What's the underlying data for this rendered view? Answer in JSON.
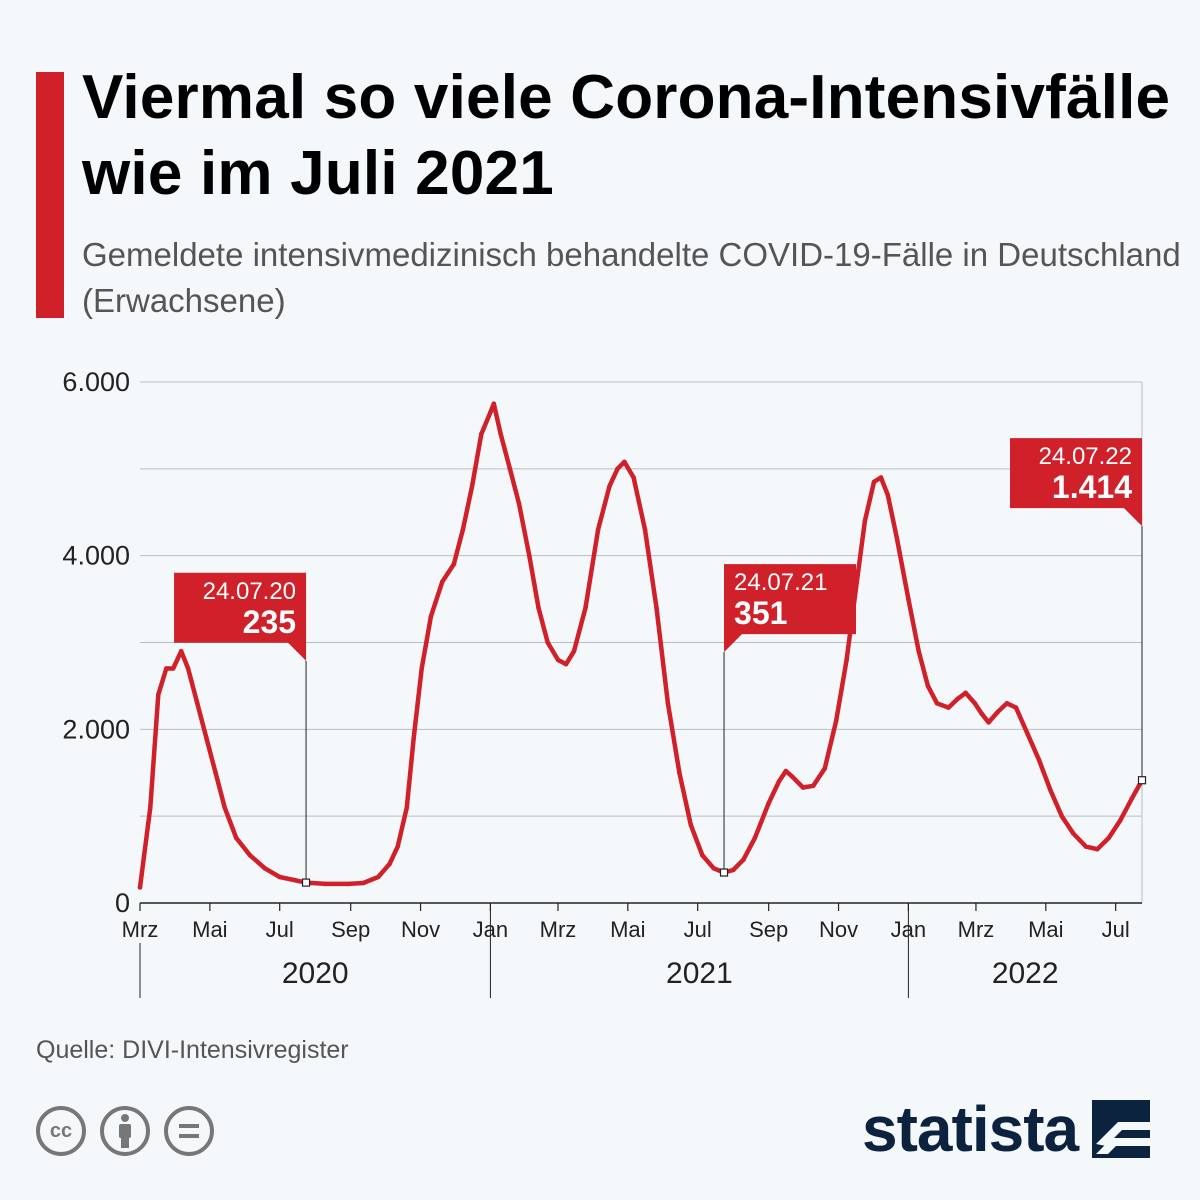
{
  "header": {
    "title": "Viermal so viele Corona-Intensivfälle wie im Juli 2021",
    "subtitle": "Gemeldete intensivmedizinisch behandelte COVID-19-Fälle in Deutschland (Erwachsene)"
  },
  "footer": {
    "source": "Quelle: DIVI-Intensivregister",
    "license_icons": [
      "cc-icon",
      "attribution-person-icon",
      "no-derivatives-equals-icon"
    ],
    "cc_label": "cc",
    "brand": "statista"
  },
  "colors": {
    "accent": "#d0202a",
    "text": "#000000",
    "muted": "#555555",
    "brand": "#0c2340",
    "background": "#f5f8fb"
  },
  "chart_data": {
    "type": "line",
    "title": "",
    "xlabel": "",
    "ylabel": "",
    "ylim": [
      0,
      6000
    ],
    "y_ticks": [
      {
        "value": 0,
        "label": "0"
      },
      {
        "value": 2000,
        "label": "2.000"
      },
      {
        "value": 4000,
        "label": "4.000"
      },
      {
        "value": 6000,
        "label": "6.000"
      }
    ],
    "x_range": [
      "2020-03-01",
      "2022-07-24"
    ],
    "x_ticks": [
      {
        "date": "2020-03-01",
        "label": "Mrz"
      },
      {
        "date": "2020-05-01",
        "label": "Mai"
      },
      {
        "date": "2020-07-01",
        "label": "Jul"
      },
      {
        "date": "2020-09-01",
        "label": "Sep"
      },
      {
        "date": "2020-11-01",
        "label": "Nov"
      },
      {
        "date": "2021-01-01",
        "label": "Jan"
      },
      {
        "date": "2021-03-01",
        "label": "Mrz"
      },
      {
        "date": "2021-05-01",
        "label": "Mai"
      },
      {
        "date": "2021-07-01",
        "label": "Jul"
      },
      {
        "date": "2021-09-01",
        "label": "Sep"
      },
      {
        "date": "2021-11-01",
        "label": "Nov"
      },
      {
        "date": "2022-01-01",
        "label": "Jan"
      },
      {
        "date": "2022-03-01",
        "label": "Mrz"
      },
      {
        "date": "2022-05-01",
        "label": "Mai"
      },
      {
        "date": "2022-07-01",
        "label": "Jul"
      }
    ],
    "years": [
      {
        "label": "2020",
        "start": "2020-03-01",
        "end": "2021-01-01"
      },
      {
        "label": "2021",
        "start": "2021-01-01",
        "end": "2022-01-01"
      },
      {
        "label": "2022",
        "start": "2022-01-01",
        "end": "2022-07-24"
      }
    ],
    "grid": true,
    "series": [
      {
        "name": "",
        "color": "#d0202a",
        "points": [
          [
            "2020-03-01",
            180
          ],
          [
            "2020-03-10",
            1100
          ],
          [
            "2020-03-17",
            2400
          ],
          [
            "2020-03-24",
            2700
          ],
          [
            "2020-03-30",
            2700
          ],
          [
            "2020-04-06",
            2900
          ],
          [
            "2020-04-12",
            2700
          ],
          [
            "2020-04-20",
            2300
          ],
          [
            "2020-04-28",
            1900
          ],
          [
            "2020-05-06",
            1500
          ],
          [
            "2020-05-14",
            1100
          ],
          [
            "2020-05-24",
            750
          ],
          [
            "2020-06-05",
            550
          ],
          [
            "2020-06-18",
            400
          ],
          [
            "2020-07-01",
            300
          ],
          [
            "2020-07-24",
            235
          ],
          [
            "2020-08-10",
            220
          ],
          [
            "2020-08-30",
            220
          ],
          [
            "2020-09-12",
            230
          ],
          [
            "2020-09-25",
            300
          ],
          [
            "2020-10-05",
            450
          ],
          [
            "2020-10-12",
            650
          ],
          [
            "2020-10-20",
            1100
          ],
          [
            "2020-10-26",
            1900
          ],
          [
            "2020-11-02",
            2700
          ],
          [
            "2020-11-10",
            3300
          ],
          [
            "2020-11-20",
            3700
          ],
          [
            "2020-11-30",
            3900
          ],
          [
            "2020-12-08",
            4300
          ],
          [
            "2020-12-16",
            4800
          ],
          [
            "2020-12-24",
            5400
          ],
          [
            "2021-01-01",
            5650
          ],
          [
            "2021-01-04",
            5750
          ],
          [
            "2021-01-10",
            5400
          ],
          [
            "2021-01-18",
            5000
          ],
          [
            "2021-01-26",
            4600
          ],
          [
            "2021-02-04",
            4000
          ],
          [
            "2021-02-12",
            3400
          ],
          [
            "2021-02-20",
            3000
          ],
          [
            "2021-03-01",
            2800
          ],
          [
            "2021-03-08",
            2750
          ],
          [
            "2021-03-15",
            2900
          ],
          [
            "2021-03-25",
            3400
          ],
          [
            "2021-04-05",
            4300
          ],
          [
            "2021-04-15",
            4800
          ],
          [
            "2021-04-22",
            5000
          ],
          [
            "2021-04-28",
            5080
          ],
          [
            "2021-05-06",
            4900
          ],
          [
            "2021-05-16",
            4300
          ],
          [
            "2021-05-26",
            3400
          ],
          [
            "2021-06-05",
            2300
          ],
          [
            "2021-06-15",
            1500
          ],
          [
            "2021-06-25",
            900
          ],
          [
            "2021-07-05",
            550
          ],
          [
            "2021-07-15",
            400
          ],
          [
            "2021-07-24",
            351
          ],
          [
            "2021-08-01",
            380
          ],
          [
            "2021-08-10",
            500
          ],
          [
            "2021-08-20",
            750
          ],
          [
            "2021-09-01",
            1150
          ],
          [
            "2021-09-10",
            1400
          ],
          [
            "2021-09-16",
            1520
          ],
          [
            "2021-09-22",
            1450
          ],
          [
            "2021-10-01",
            1330
          ],
          [
            "2021-10-10",
            1350
          ],
          [
            "2021-10-20",
            1550
          ],
          [
            "2021-10-30",
            2100
          ],
          [
            "2021-11-08",
            2800
          ],
          [
            "2021-11-16",
            3600
          ],
          [
            "2021-11-24",
            4400
          ],
          [
            "2021-12-02",
            4850
          ],
          [
            "2021-12-08",
            4900
          ],
          [
            "2021-12-14",
            4700
          ],
          [
            "2021-12-22",
            4200
          ],
          [
            "2022-01-01",
            3500
          ],
          [
            "2022-01-10",
            2900
          ],
          [
            "2022-01-18",
            2500
          ],
          [
            "2022-01-26",
            2300
          ],
          [
            "2022-02-05",
            2250
          ],
          [
            "2022-02-13",
            2350
          ],
          [
            "2022-02-20",
            2420
          ],
          [
            "2022-02-28",
            2300
          ],
          [
            "2022-03-06",
            2180
          ],
          [
            "2022-03-12",
            2080
          ],
          [
            "2022-03-20",
            2200
          ],
          [
            "2022-03-28",
            2300
          ],
          [
            "2022-04-05",
            2250
          ],
          [
            "2022-04-15",
            1950
          ],
          [
            "2022-04-25",
            1650
          ],
          [
            "2022-05-05",
            1300
          ],
          [
            "2022-05-15",
            1000
          ],
          [
            "2022-05-25",
            800
          ],
          [
            "2022-06-05",
            650
          ],
          [
            "2022-06-15",
            620
          ],
          [
            "2022-06-25",
            750
          ],
          [
            "2022-07-05",
            950
          ],
          [
            "2022-07-15",
            1200
          ],
          [
            "2022-07-24",
            1414
          ]
        ]
      }
    ],
    "annotations": [
      {
        "date": "2020-07-24",
        "value": 235,
        "date_label": "24.07.20",
        "value_label": "235",
        "box_y": 3400,
        "tail": "right"
      },
      {
        "date": "2021-07-24",
        "value": 351,
        "date_label": "24.07.21",
        "value_label": "351",
        "box_y": 3500,
        "tail": "left"
      },
      {
        "date": "2022-07-24",
        "value": 1414,
        "date_label": "24.07.22",
        "value_label": "1.414",
        "box_y": 4950,
        "tail": "right"
      }
    ]
  }
}
